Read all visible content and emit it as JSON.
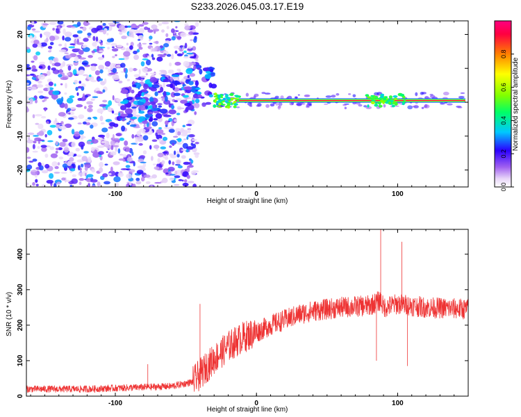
{
  "title": "S233.2026.045.03.17.E19",
  "chart_data": [
    {
      "type": "heatmap",
      "xlabel": "Height of straight line (km)",
      "ylabel": "Frequency (Hz)",
      "xlim": [
        -163,
        150
      ],
      "ylim": [
        -25,
        24
      ],
      "xticks": [
        -100,
        0,
        100
      ],
      "yticks": [
        -20,
        -10,
        0,
        10,
        20
      ],
      "colorbar": {
        "label": "Normalized spectral amplitude",
        "range": [
          0,
          1
        ],
        "ticks": [
          0,
          0.2,
          0.4,
          0.6,
          0.8
        ],
        "colors": [
          "#ffffff",
          "#e8d6f8",
          "#8a2be2",
          "#2b00ff",
          "#00c8ff",
          "#00ff66",
          "#80ff00",
          "#ffff00",
          "#ff8000",
          "#ff0040",
          "#ff0080"
        ]
      },
      "ridge": {
        "description": "narrow high-amplitude band near 0 Hz",
        "x_start": -30,
        "x_end": 148,
        "frequency": 0.5,
        "amplitude": 0.95
      },
      "noise_region": {
        "x_start": -163,
        "x_end": -50,
        "amplitude": 0.3
      }
    },
    {
      "type": "line",
      "xlabel": "Height of straight line (km)",
      "ylabel": "SNR (10 * v/v)",
      "xlim": [
        -163,
        150
      ],
      "ylim": [
        0,
        470
      ],
      "xticks": [
        -100,
        0,
        100
      ],
      "yticks": [
        0,
        100,
        200,
        300,
        400
      ],
      "color": "#ee3333",
      "series": [
        {
          "name": "SNR",
          "x": [
            -163,
            -120,
            -80,
            -60,
            -45,
            -38,
            -30,
            -20,
            -10,
            0,
            10,
            20,
            30,
            40,
            60,
            80,
            88,
            90,
            100,
            110,
            120,
            150
          ],
          "values": [
            20,
            20,
            25,
            28,
            40,
            70,
            105,
            140,
            165,
            180,
            200,
            215,
            230,
            240,
            250,
            255,
            270,
            250,
            260,
            255,
            250,
            245
          ]
        }
      ],
      "spikes": [
        {
          "x": -77,
          "value": 90
        },
        {
          "x": -40,
          "value": 260
        },
        {
          "x": 88,
          "value": 470
        },
        {
          "x": 85,
          "value": 100
        },
        {
          "x": 103,
          "value": 435
        },
        {
          "x": 107,
          "value": 85
        }
      ]
    }
  ]
}
